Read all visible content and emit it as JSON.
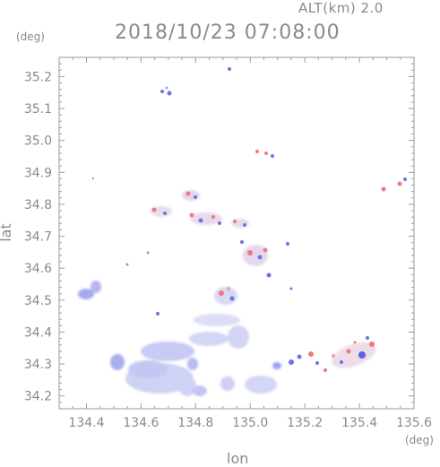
{
  "header": {
    "altitude_label": "ALT(km) 2.0",
    "datetime": "2018/10/23 07:08:00"
  },
  "axes": {
    "y_unit": "(deg)",
    "x_unit": "(deg)",
    "x_label": "lon",
    "y_label": "lat",
    "x_range": [
      134.3,
      135.6
    ],
    "y_range": [
      34.16,
      35.26
    ],
    "x_ticks": [
      "134.4",
      "134.6",
      "134.8",
      "135.0",
      "135.2",
      "135.4",
      "135.6"
    ],
    "y_ticks": [
      "34.2",
      "34.3",
      "34.4",
      "34.5",
      "34.6",
      "34.7",
      "34.8",
      "34.9",
      "35.0",
      "35.1",
      "35.2"
    ]
  },
  "colors": {
    "frame": "#9a9a9a",
    "text": "#8a8a8a",
    "blue": "#6e73e6",
    "blue_light": "#c9cdf3",
    "red": "#ee7a7a",
    "red_light": "#f5c6c6"
  }
}
